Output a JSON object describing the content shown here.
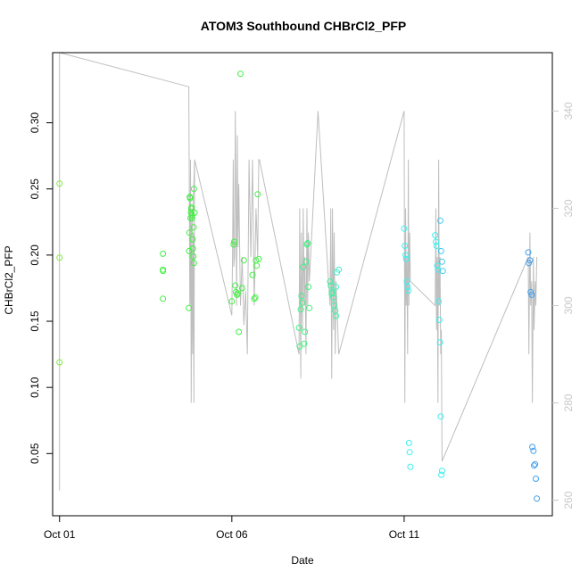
{
  "chart_data": {
    "type": "scatter",
    "title": "ATOM3 Southbound CHBrCl2_PFP",
    "xlabel": "Date",
    "ylabel": "CHBrCl2_PFP",
    "xlim": [
      -0.2,
      14.3
    ],
    "ylim": [
      0.003,
      0.353
    ],
    "y2lim": [
      256.8,
      352
    ],
    "x_ticks": [
      {
        "value": 0,
        "label": "Oct 01"
      },
      {
        "value": 5,
        "label": "Oct 06"
      },
      {
        "value": 10,
        "label": "Oct 11"
      }
    ],
    "y_ticks": [
      0.05,
      0.1,
      0.15,
      0.2,
      0.25,
      0.3
    ],
    "y2_ticks": [
      260,
      280,
      300,
      320,
      340
    ],
    "colors": {
      "frame": "#000000",
      "altitude_line": "#bebebe",
      "right_axis": "#c8c8c8"
    },
    "series": [
      {
        "color": "#7fef3f",
        "x": [
          0.0,
          0.0,
          0.0
        ],
        "y": [
          0.119,
          0.198,
          0.254
        ]
      },
      {
        "color": "#3ff03f",
        "x": [
          3.0,
          3.0,
          3.0,
          3.0,
          3.75,
          3.76,
          3.77,
          3.78,
          3.79,
          3.8,
          3.81,
          3.82,
          3.83,
          3.84,
          3.85,
          3.86,
          3.87,
          3.88,
          3.89,
          3.9,
          3.9,
          3.92,
          5.0,
          5.05,
          5.07,
          5.1,
          5.12,
          5.15,
          5.17,
          5.2,
          5.25,
          5.3,
          5.35,
          5.6,
          5.65,
          5.68,
          5.7,
          5.72,
          5.75,
          5.78
        ],
        "y": [
          0.201,
          0.189,
          0.188,
          0.167,
          0.16,
          0.203,
          0.217,
          0.244,
          0.243,
          0.228,
          0.232,
          0.235,
          0.236,
          0.23,
          0.228,
          0.212,
          0.205,
          0.199,
          0.221,
          0.194,
          0.25,
          0.232,
          0.165,
          0.208,
          0.21,
          0.177,
          0.172,
          0.17,
          0.171,
          0.142,
          0.337,
          0.175,
          0.196,
          0.185,
          0.167,
          0.168,
          0.196,
          0.192,
          0.246,
          0.197
        ]
      },
      {
        "color": "#3ff07f",
        "x": [
          6.95,
          6.97,
          7.0,
          7.02,
          7.05,
          7.07,
          7.1,
          7.12,
          7.15,
          7.18,
          7.2,
          7.22,
          7.25
        ],
        "y": [
          0.145,
          0.131,
          0.159,
          0.169,
          0.164,
          0.191,
          0.133,
          0.142,
          0.195,
          0.208,
          0.209,
          0.176,
          0.16
        ]
      },
      {
        "color": "#3ff0a0",
        "x": [
          7.85,
          7.87,
          7.9,
          7.92,
          7.95,
          7.97,
          8.0,
          8.02
        ],
        "y": [
          0.18,
          0.177,
          0.171,
          0.172,
          0.168,
          0.162,
          0.158,
          0.154
        ]
      },
      {
        "color": "#3ff0c8",
        "x": [
          8.02,
          8.05,
          8.1
        ],
        "y": [
          0.176,
          0.187,
          0.189
        ]
      },
      {
        "color": "#3fefef",
        "x": [
          10.0,
          10.02,
          10.04,
          10.06,
          10.08,
          10.1,
          10.12,
          10.14,
          10.16,
          10.18,
          10.9,
          10.92,
          10.94,
          10.96,
          10.98,
          11.0,
          11.02,
          11.04,
          11.06,
          11.08,
          11.1
        ],
        "y": [
          0.22,
          0.207,
          0.2,
          0.197,
          0.18,
          0.176,
          0.173,
          0.058,
          0.051,
          0.04,
          0.215,
          0.21,
          0.207,
          0.192,
          0.189,
          0.165,
          0.151,
          0.134,
          0.078,
          0.034,
          0.037
        ]
      },
      {
        "color": "#3fc8ef",
        "x": [
          11.05,
          11.07,
          11.1,
          11.12
        ],
        "y": [
          0.226,
          0.203,
          0.195,
          0.188
        ]
      },
      {
        "color": "#3f9fef",
        "x": [
          13.6,
          13.62,
          13.65,
          13.67,
          13.7,
          13.72,
          13.75,
          13.77,
          13.8,
          13.82,
          13.85
        ],
        "y": [
          0.202,
          0.194,
          0.196,
          0.172,
          0.17,
          0.055,
          0.052,
          0.041,
          0.042,
          0.031,
          0.016
        ]
      }
    ],
    "altitude_path": {
      "x": [
        0.0,
        0.0,
        3.75,
        3.78,
        3.8,
        3.82,
        3.84,
        3.86,
        3.88,
        3.9,
        3.92,
        3.78,
        3.8,
        3.82,
        3.84,
        3.86,
        3.88,
        3.9,
        3.92,
        5.0,
        5.02,
        5.04,
        5.06,
        5.08,
        5.1,
        5.12,
        5.14,
        5.16,
        5.18,
        5.2,
        5.25,
        5.3,
        5.35,
        5.4,
        5.45,
        5.5,
        5.55,
        5.6,
        5.65,
        5.7,
        5.75,
        5.78,
        5.8,
        6.95,
        6.97,
        7.0,
        7.02,
        7.05,
        7.07,
        7.1,
        7.12,
        7.15,
        7.18,
        7.2,
        7.22,
        7.25,
        7.5,
        7.85,
        7.87,
        7.9,
        7.92,
        7.95,
        7.97,
        8.0,
        8.02,
        8.05,
        8.1,
        10.0,
        10.02,
        10.04,
        10.06,
        10.08,
        10.1,
        10.12,
        10.14,
        10.16,
        10.18,
        10.9,
        10.92,
        10.94,
        10.96,
        10.98,
        11.0,
        11.02,
        11.04,
        11.06,
        11.08,
        11.1,
        13.6,
        13.62,
        13.65,
        13.67,
        13.7,
        13.72,
        13.75,
        13.77,
        13.8,
        13.82,
        13.85
      ],
      "y": [
        262,
        352,
        345,
        300,
        330,
        280,
        320,
        290,
        310,
        280,
        330,
        300,
        325,
        285,
        320,
        295,
        315,
        300,
        330,
        298,
        310,
        330,
        308,
        310,
        340,
        320,
        300,
        335,
        312,
        325,
        300,
        310,
        296,
        303,
        290,
        330,
        310,
        330,
        300,
        320,
        310,
        330,
        330,
        290,
        320,
        285,
        315,
        295,
        320,
        300,
        310,
        290,
        320,
        300,
        315,
        305,
        340,
        300,
        320,
        285,
        320,
        295,
        315,
        290,
        305,
        300,
        290,
        340,
        280,
        320,
        300,
        310,
        290,
        330,
        300,
        315,
        305,
        300,
        320,
        295,
        310,
        280,
        330,
        300,
        310,
        290,
        295,
        268,
        310,
        290,
        315,
        300,
        305,
        280,
        310,
        295,
        305,
        300,
        310
      ]
    }
  }
}
